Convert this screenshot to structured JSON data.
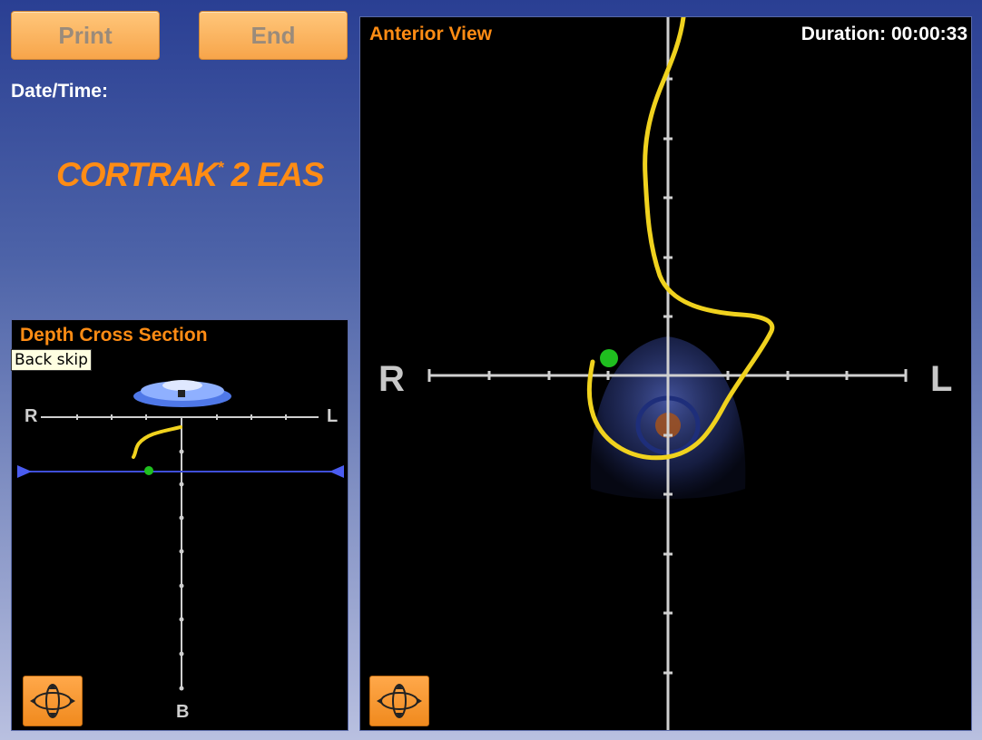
{
  "toolbar": {
    "print_label": "Print",
    "end_label": "End"
  },
  "info": {
    "datetime_label": "Date/Time:"
  },
  "brand": {
    "name": "CORTRAK",
    "sup": "*",
    "suffix": " 2 EAS",
    "color": "#ff8c14"
  },
  "depth_view": {
    "title": "Depth Cross Section",
    "left_label": "R",
    "right_label": "L",
    "bottom_label": "B",
    "tooltip": "Back skip",
    "rotate_icon": "rotate-view-icon"
  },
  "anterior_view": {
    "title": "Anterior View",
    "duration_label": "Duration:",
    "duration_value": "00:00:33",
    "left_label": "R",
    "right_label": "L",
    "rotate_icon": "rotate-view-icon"
  },
  "colors": {
    "accent": "#ff8c14",
    "tube_path": "#f0d21e",
    "tip_marker": "#1fbf1f",
    "axis": "#cfcfcf"
  }
}
